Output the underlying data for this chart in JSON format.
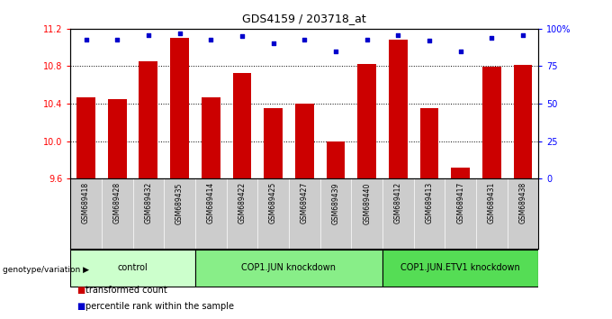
{
  "title": "GDS4159 / 203718_at",
  "samples": [
    "GSM689418",
    "GSM689428",
    "GSM689432",
    "GSM689435",
    "GSM689414",
    "GSM689422",
    "GSM689425",
    "GSM689427",
    "GSM689439",
    "GSM689440",
    "GSM689412",
    "GSM689413",
    "GSM689417",
    "GSM689431",
    "GSM689438"
  ],
  "red_values": [
    10.47,
    10.45,
    10.85,
    11.1,
    10.47,
    10.73,
    10.35,
    10.4,
    10.0,
    10.82,
    11.08,
    10.35,
    9.72,
    10.79,
    10.81
  ],
  "blue_values": [
    93,
    93,
    96,
    97,
    93,
    95,
    90,
    93,
    85,
    93,
    96,
    92,
    85,
    94,
    96
  ],
  "groups": [
    {
      "label": "control",
      "start": 0,
      "end": 4,
      "color": "#ccffcc"
    },
    {
      "label": "COP1.JUN knockdown",
      "start": 4,
      "end": 10,
      "color": "#88ee88"
    },
    {
      "label": "COP1.JUN.ETV1 knockdown",
      "start": 10,
      "end": 15,
      "color": "#55dd55"
    }
  ],
  "ylim_left": [
    9.6,
    11.2
  ],
  "ylim_right": [
    0,
    100
  ],
  "yticks_left": [
    9.6,
    10.0,
    10.4,
    10.8,
    11.2
  ],
  "yticks_right": [
    0,
    25,
    50,
    75,
    100
  ],
  "bar_color": "#cc0000",
  "dot_color": "#0000cc",
  "bar_width": 0.6,
  "bg_color": "#cccccc",
  "genotype_label": "genotype/variation"
}
